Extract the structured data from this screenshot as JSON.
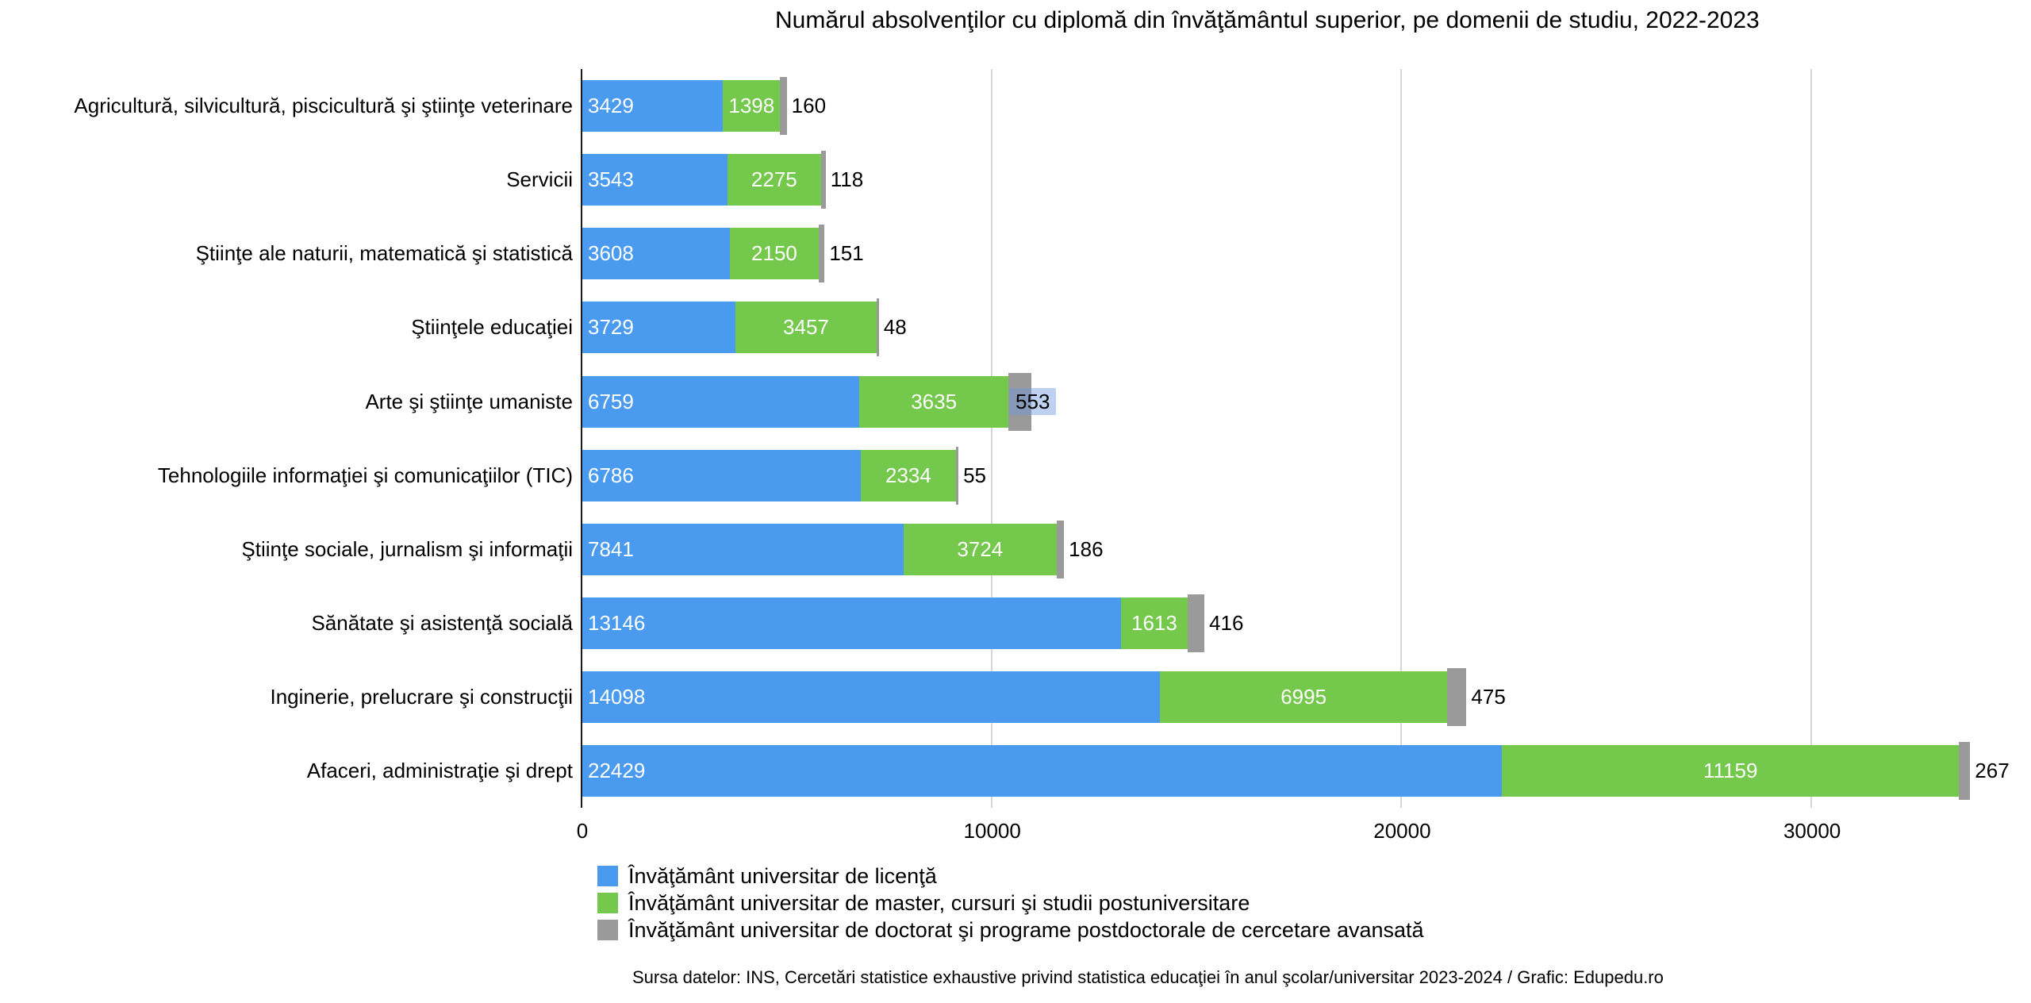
{
  "title": "Numărul absolvenţilor cu diplomă din învăţământul superior, pe domenii de studiu, 2022-2023",
  "source_note": "Sursa datelor: INS, Cercetări statistice exhaustive privind statistica educaţiei în anul şcolar/universitar 2023-2024 / Grafic: Edupedu.ro",
  "colors": {
    "licenta": "#4a9bf0",
    "master": "#74c84b",
    "doctorat": "#9a9a9a",
    "gridline": "#d7d7d7",
    "axis": "#1a1a1a",
    "label_selection_highlight": "rgba(110,153,222,0.45)"
  },
  "chart_data": {
    "type": "bar",
    "orientation": "horizontal",
    "stacked": true,
    "title": "Numărul absolvenţilor cu diplomă din învăţământul superior, pe domenii de studiu, 2022-2023",
    "categories": [
      "Agricultură, silvicultură, piscicultură şi ştiinţe veterinare",
      "Servicii",
      "Ştiinţe ale naturii, matematică şi statistică",
      "Ştiinţele educaţiei",
      "Arte şi ştiinţe umaniste",
      "Tehnologiile informaţiei şi comunicaţiilor (TIC)",
      "Ştiinţe sociale, jurnalism şi informaţii",
      "Sănătate şi asistenţă socială",
      "Inginerie, prelucrare şi construcţii",
      "Afaceri, administraţie şi drept"
    ],
    "series": [
      {
        "name": "Învăţământ universitar de licenţă",
        "color": "#4a9bf0",
        "values": [
          3429,
          3543,
          3608,
          3729,
          6759,
          6786,
          7841,
          13146,
          14098,
          22429
        ]
      },
      {
        "name": "Învăţământ universitar de master, cursuri şi studii postuniversitare",
        "color": "#74c84b",
        "values": [
          1398,
          2275,
          2150,
          3457,
          3635,
          2334,
          3724,
          1613,
          6995,
          11159
        ]
      },
      {
        "name": "Învăţământ universitar de doctorat şi programe postdoctorale de cercetare avansată",
        "color": "#9a9a9a",
        "values": [
          160,
          118,
          151,
          48,
          553,
          55,
          186,
          416,
          475,
          267
        ]
      }
    ],
    "x_ticks": [
      0,
      10000,
      20000,
      30000
    ],
    "xlim": [
      0,
      35000
    ],
    "grid": true,
    "legend_position": "bottom",
    "selected_label": {
      "category_index": 4,
      "series_index": 2,
      "value": 553,
      "highlight_color": "rgba(110,153,222,0.45)"
    }
  }
}
